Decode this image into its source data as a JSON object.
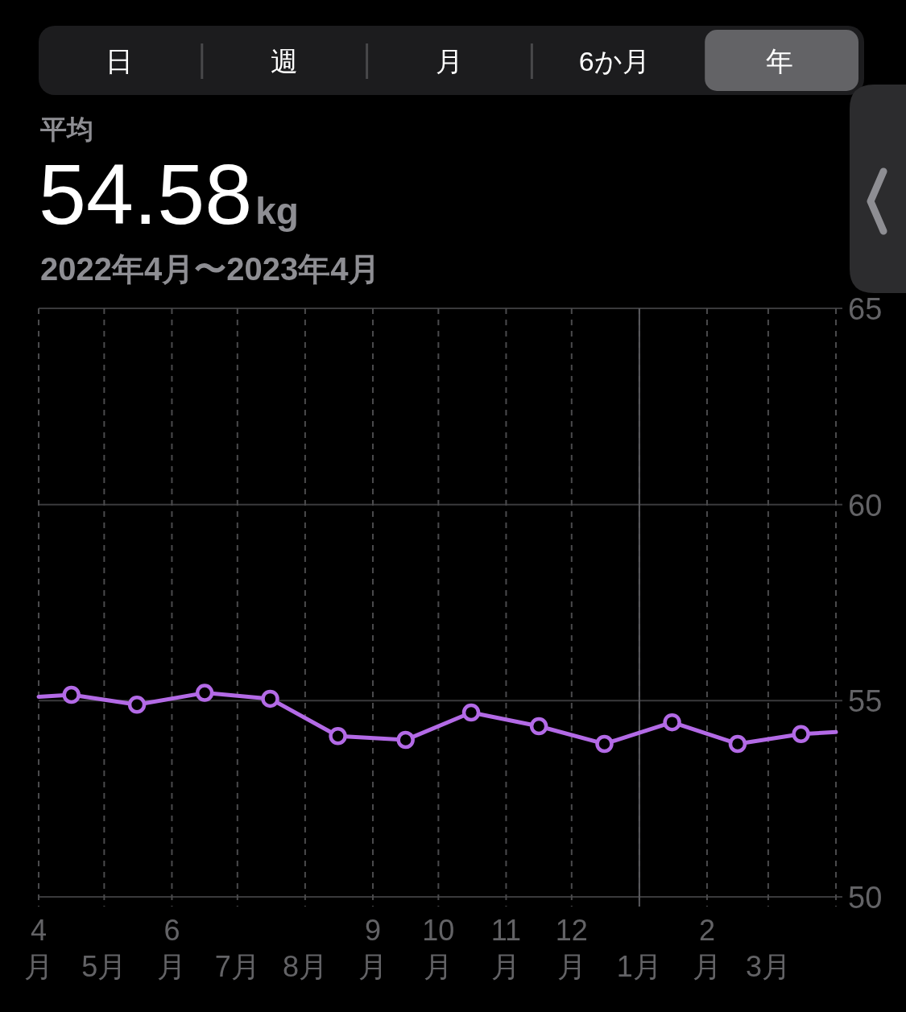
{
  "chart_data": {
    "type": "line",
    "title": "54.58kg",
    "subtitle": "2022年4月〜2023年4月",
    "annotations": [
      "日",
      "週",
      "月",
      "6か月",
      "年",
      "平均"
    ],
    "x": [
      "2022-04-01",
      "2022-04-16",
      "2022-05-16",
      "2022-06-16",
      "2022-07-16",
      "2022-08-16",
      "2022-09-16",
      "2022-10-16",
      "2022-11-16",
      "2022-12-16",
      "2023-01-16",
      "2023-02-15",
      "2023-03-16",
      "2023-04-01"
    ],
    "series": [
      {
        "color": "#b36ae6",
        "values": [
          55.1,
          55.15,
          54.9,
          55.2,
          55.05,
          54.1,
          54.0,
          54.7,
          54.35,
          53.9,
          54.45,
          53.9,
          54.15,
          54.2
        ]
      }
    ],
    "xlim": [
      "2022-04-01",
      "2023-04-01"
    ],
    "xticks": [
      {
        "value": "2022-04-01",
        "label": "4月"
      },
      {
        "value": "2022-05-01",
        "label": "5月"
      },
      {
        "value": "2022-06-01",
        "label": "6月"
      },
      {
        "value": "2022-07-01",
        "label": "7月"
      },
      {
        "value": "2022-08-01",
        "label": "8月"
      },
      {
        "value": "2022-09-01",
        "label": "9月"
      },
      {
        "value": "2022-10-01",
        "label": "10月"
      },
      {
        "value": "2022-11-01",
        "label": "11月"
      },
      {
        "value": "2022-12-01",
        "label": "12月"
      },
      {
        "value": "2023-01-01",
        "label": "1月"
      },
      {
        "value": "2023-02-01",
        "label": "2月"
      },
      {
        "value": "2023-03-01",
        "label": "3月"
      },
      {
        "value": "2023-04-01",
        "label": null
      }
    ],
    "ylim": [
      50,
      65
    ],
    "yticks": [
      50,
      55,
      60,
      65
    ],
    "ref_lines": [
      {
        "axis": "x",
        "value": "2023-01-01",
        "line_style": "solid"
      }
    ],
    "grid": true,
    "marker": "circle",
    "line_style": "solid"
  }
}
